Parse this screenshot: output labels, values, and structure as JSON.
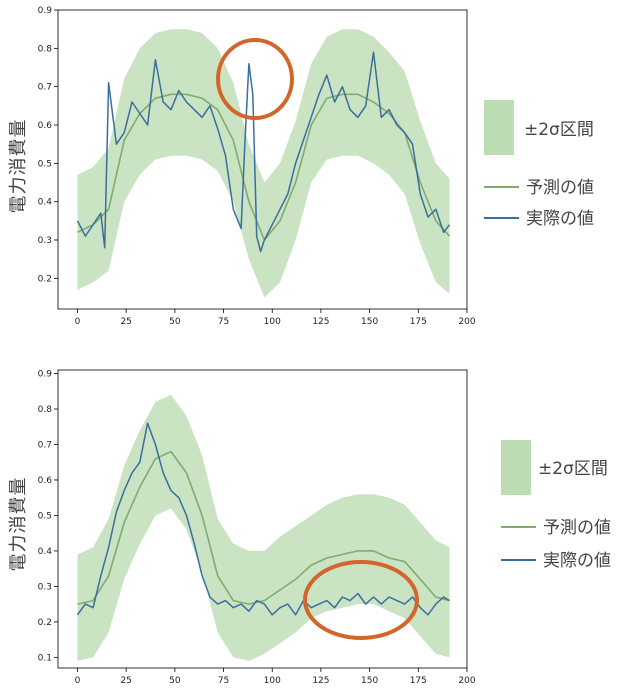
{
  "colors": {
    "band": "#bcdcb4",
    "predicted": "#7fad6e",
    "actual": "#3a6e9f",
    "highlight": "#d3652b",
    "axis": "#000000"
  },
  "chart_data": [
    {
      "type": "line",
      "ylabel": "電力消費量",
      "xlim": [
        -10,
        200
      ],
      "ylim": [
        0.12,
        0.9
      ],
      "xticks": [
        0,
        25,
        50,
        75,
        100,
        125,
        150,
        175,
        200
      ],
      "yticks": [
        0.2,
        0.3,
        0.4,
        0.5,
        0.6,
        0.7,
        0.8,
        0.9
      ],
      "x": [
        0,
        8,
        16,
        24,
        32,
        40,
        48,
        56,
        64,
        72,
        80,
        88,
        96,
        104,
        112,
        120,
        128,
        136,
        144,
        152,
        160,
        168,
        176,
        184,
        191
      ],
      "legend": {
        "position": "right",
        "band": "±2σ区間",
        "predicted": "予測の値",
        "actual": "実際の値"
      },
      "series": [
        {
          "name": "予測の値",
          "role": "predicted",
          "values": [
            0.32,
            0.34,
            0.38,
            0.56,
            0.63,
            0.67,
            0.68,
            0.68,
            0.67,
            0.64,
            0.56,
            0.4,
            0.3,
            0.35,
            0.45,
            0.6,
            0.67,
            0.68,
            0.68,
            0.66,
            0.63,
            0.58,
            0.45,
            0.35,
            0.31
          ]
        },
        {
          "name": "±2σ区間 (upper)",
          "role": "band_upper",
          "values": [
            0.47,
            0.49,
            0.54,
            0.72,
            0.8,
            0.84,
            0.85,
            0.85,
            0.84,
            0.8,
            0.71,
            0.55,
            0.45,
            0.5,
            0.61,
            0.76,
            0.83,
            0.85,
            0.85,
            0.83,
            0.79,
            0.74,
            0.61,
            0.5,
            0.46
          ]
        },
        {
          "name": "±2σ区間 (lower)",
          "role": "band_lower",
          "values": [
            0.17,
            0.19,
            0.22,
            0.4,
            0.47,
            0.51,
            0.52,
            0.52,
            0.51,
            0.48,
            0.4,
            0.25,
            0.15,
            0.19,
            0.3,
            0.45,
            0.51,
            0.52,
            0.52,
            0.5,
            0.47,
            0.42,
            0.29,
            0.19,
            0.16
          ]
        },
        {
          "name": "実際の値",
          "role": "actual",
          "x": [
            0,
            4,
            8,
            12,
            14,
            16,
            20,
            24,
            28,
            32,
            36,
            40,
            44,
            48,
            52,
            56,
            60,
            64,
            68,
            72,
            76,
            80,
            84,
            86,
            88,
            90,
            92,
            94,
            96,
            100,
            104,
            108,
            112,
            116,
            120,
            124,
            128,
            132,
            136,
            140,
            144,
            148,
            152,
            156,
            160,
            164,
            168,
            172,
            176,
            180,
            184,
            188,
            191
          ],
          "values": [
            0.35,
            0.31,
            0.34,
            0.37,
            0.28,
            0.71,
            0.55,
            0.58,
            0.66,
            0.63,
            0.6,
            0.77,
            0.66,
            0.64,
            0.69,
            0.66,
            0.64,
            0.62,
            0.65,
            0.59,
            0.52,
            0.38,
            0.33,
            0.56,
            0.76,
            0.68,
            0.31,
            0.27,
            0.3,
            0.34,
            0.38,
            0.42,
            0.5,
            0.56,
            0.62,
            0.68,
            0.73,
            0.66,
            0.7,
            0.64,
            0.62,
            0.65,
            0.79,
            0.62,
            0.64,
            0.6,
            0.58,
            0.55,
            0.42,
            0.36,
            0.38,
            0.32,
            0.34
          ]
        }
      ]
    },
    {
      "type": "line",
      "ylabel": "電力消費量",
      "xlim": [
        -10,
        200
      ],
      "ylim": [
        0.07,
        0.91
      ],
      "xticks": [
        0,
        25,
        50,
        75,
        100,
        125,
        150,
        175,
        200
      ],
      "yticks": [
        0.1,
        0.2,
        0.3,
        0.4,
        0.5,
        0.6,
        0.7,
        0.8,
        0.9
      ],
      "x": [
        0,
        8,
        16,
        24,
        32,
        40,
        48,
        56,
        64,
        72,
        80,
        88,
        96,
        104,
        112,
        120,
        128,
        136,
        144,
        152,
        160,
        168,
        176,
        184,
        191
      ],
      "legend": {
        "position": "right",
        "band": "±2σ区間",
        "predicted": "予測の値",
        "actual": "実際の値"
      },
      "series": [
        {
          "name": "予測の値",
          "role": "predicted",
          "values": [
            0.25,
            0.26,
            0.33,
            0.48,
            0.58,
            0.66,
            0.68,
            0.62,
            0.5,
            0.33,
            0.26,
            0.25,
            0.26,
            0.29,
            0.32,
            0.36,
            0.38,
            0.39,
            0.4,
            0.4,
            0.38,
            0.37,
            0.32,
            0.27,
            0.26
          ]
        },
        {
          "name": "±2σ区間 (upper)",
          "role": "band_upper",
          "values": [
            0.39,
            0.41,
            0.49,
            0.64,
            0.74,
            0.82,
            0.84,
            0.78,
            0.67,
            0.49,
            0.42,
            0.4,
            0.4,
            0.44,
            0.47,
            0.5,
            0.53,
            0.55,
            0.56,
            0.56,
            0.55,
            0.53,
            0.48,
            0.43,
            0.41
          ]
        },
        {
          "name": "±2σ区間 (lower)",
          "role": "band_lower",
          "values": [
            0.09,
            0.1,
            0.17,
            0.32,
            0.42,
            0.5,
            0.52,
            0.46,
            0.34,
            0.17,
            0.1,
            0.09,
            0.11,
            0.14,
            0.17,
            0.21,
            0.23,
            0.24,
            0.25,
            0.25,
            0.23,
            0.21,
            0.16,
            0.11,
            0.1
          ]
        },
        {
          "name": "実際の値",
          "role": "actual",
          "x": [
            0,
            4,
            8,
            12,
            16,
            20,
            24,
            28,
            32,
            36,
            40,
            44,
            48,
            52,
            56,
            60,
            64,
            68,
            72,
            76,
            80,
            84,
            88,
            92,
            96,
            100,
            104,
            108,
            112,
            116,
            120,
            124,
            128,
            132,
            136,
            140,
            144,
            148,
            152,
            156,
            160,
            164,
            168,
            172,
            176,
            180,
            184,
            188,
            191
          ],
          "values": [
            0.22,
            0.25,
            0.24,
            0.33,
            0.41,
            0.51,
            0.57,
            0.62,
            0.65,
            0.76,
            0.7,
            0.62,
            0.57,
            0.55,
            0.5,
            0.42,
            0.33,
            0.27,
            0.25,
            0.26,
            0.24,
            0.25,
            0.23,
            0.26,
            0.25,
            0.22,
            0.24,
            0.25,
            0.22,
            0.26,
            0.24,
            0.25,
            0.26,
            0.24,
            0.27,
            0.26,
            0.28,
            0.25,
            0.27,
            0.25,
            0.27,
            0.26,
            0.25,
            0.27,
            0.24,
            0.22,
            0.25,
            0.27,
            0.26
          ]
        }
      ]
    }
  ]
}
